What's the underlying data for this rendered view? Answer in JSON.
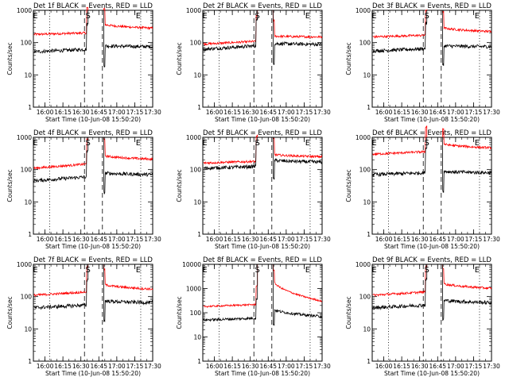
{
  "chart_data": [
    {
      "type": "line",
      "title": "Det 1f BLACK = Events, RED = LLD",
      "xlabel": "Start Time (10-Jun-08 15:50:20)",
      "ylabel": "Counts/sec",
      "yscale": "log",
      "ylim": [
        1,
        1000
      ],
      "x_ticks": [
        "16:00",
        "16:15",
        "16:30",
        "16:45",
        "17:00",
        "17:15",
        "17:30"
      ],
      "y_ticks": [
        "1",
        "10",
        "100",
        "1000"
      ],
      "markers": [
        {
          "label": "E",
          "time": "15:52"
        },
        {
          "label": "S",
          "time": "16:36"
        },
        {
          "label": "E",
          "time": "17:18"
        }
      ],
      "dashed_times": [
        "16:33",
        "16:48"
      ],
      "dotted_times": [
        "16:04",
        "17:20"
      ],
      "series": [
        {
          "name": "LLD",
          "color": "#ff0000",
          "base_before": 180,
          "end_before": 200,
          "base_after": 380,
          "end_after": 280
        },
        {
          "name": "Events",
          "color": "#000000",
          "base_before": 52,
          "end_before": 62,
          "base_after": 80,
          "end_after": 75
        }
      ]
    },
    {
      "type": "line",
      "title": "Det 2f BLACK = Events, RED = LLD",
      "xlabel": "Start Time (10-Jun-08 15:50:20)",
      "ylabel": "Counts/sec",
      "yscale": "log",
      "ylim": [
        1,
        1000
      ],
      "x_ticks": [
        "16:00",
        "16:15",
        "16:30",
        "16:45",
        "17:00",
        "17:15",
        "17:30"
      ],
      "y_ticks": [
        "1",
        "10",
        "100",
        "1000"
      ],
      "markers": [
        {
          "label": "E",
          "time": "15:52"
        },
        {
          "label": "S",
          "time": "16:36"
        },
        {
          "label": "E",
          "time": "17:18"
        }
      ],
      "dashed_times": [
        "16:33",
        "16:48"
      ],
      "dotted_times": [
        "16:04",
        "17:20"
      ],
      "series": [
        {
          "name": "LLD",
          "color": "#ff0000",
          "base_before": 90,
          "end_before": 110,
          "base_after": 160,
          "end_after": 150
        },
        {
          "name": "Events",
          "color": "#000000",
          "base_before": 62,
          "end_before": 80,
          "base_after": 95,
          "end_after": 88
        }
      ]
    },
    {
      "type": "line",
      "title": "Det 3f BLACK = Events, RED = LLD",
      "xlabel": "Start Time (10-Jun-08 15:50:20)",
      "ylabel": "Counts/sec",
      "yscale": "log",
      "ylim": [
        1,
        1000
      ],
      "x_ticks": [
        "16:00",
        "16:15",
        "16:30",
        "16:45",
        "17:00",
        "17:15",
        "17:30"
      ],
      "y_ticks": [
        "1",
        "10",
        "100",
        "1000"
      ],
      "markers": [
        {
          "label": "E",
          "time": "15:52"
        },
        {
          "label": "S",
          "time": "16:36"
        },
        {
          "label": "E",
          "time": "17:18"
        }
      ],
      "dashed_times": [
        "16:33",
        "16:48"
      ],
      "dotted_times": [
        "16:04",
        "17:20"
      ],
      "series": [
        {
          "name": "LLD",
          "color": "#ff0000",
          "base_before": 150,
          "end_before": 170,
          "base_after": 300,
          "end_after": 220
        },
        {
          "name": "Events",
          "color": "#000000",
          "base_before": 55,
          "end_before": 65,
          "base_after": 80,
          "end_after": 75
        }
      ]
    },
    {
      "type": "line",
      "title": "Det 4f BLACK = Events, RED = LLD",
      "xlabel": "Start Time (10-Jun-08 15:50:20)",
      "ylabel": "Counts/sec",
      "yscale": "log",
      "ylim": [
        1,
        1000
      ],
      "x_ticks": [
        "16:00",
        "16:15",
        "16:30",
        "16:45",
        "17:00",
        "17:15",
        "17:30"
      ],
      "y_ticks": [
        "1",
        "10",
        "100",
        "1000"
      ],
      "markers": [
        {
          "label": "E",
          "time": "15:52"
        },
        {
          "label": "S",
          "time": "16:36"
        },
        {
          "label": "E",
          "time": "17:18"
        }
      ],
      "dashed_times": [
        "16:33",
        "16:48"
      ],
      "dotted_times": [
        "16:04",
        "17:20"
      ],
      "series": [
        {
          "name": "LLD",
          "color": "#ff0000",
          "base_before": 110,
          "end_before": 150,
          "base_after": 280,
          "end_after": 210
        },
        {
          "name": "Events",
          "color": "#000000",
          "base_before": 45,
          "end_before": 60,
          "base_after": 80,
          "end_after": 70
        }
      ]
    },
    {
      "type": "line",
      "title": "Det 5f BLACK = Events, RED = LLD",
      "xlabel": "Start Time (10-Jun-08 15:50:20)",
      "ylabel": "Counts/sec",
      "yscale": "log",
      "ylim": [
        1,
        1000
      ],
      "x_ticks": [
        "16:00",
        "16:15",
        "16:30",
        "16:45",
        "17:00",
        "17:15",
        "17:30"
      ],
      "y_ticks": [
        "1",
        "10",
        "100",
        "1000"
      ],
      "markers": [
        {
          "label": "E",
          "time": "15:52"
        },
        {
          "label": "S",
          "time": "16:36"
        },
        {
          "label": "E",
          "time": "17:18"
        }
      ],
      "dashed_times": [
        "16:33",
        "16:48"
      ],
      "dotted_times": [
        "16:04",
        "17:20"
      ],
      "series": [
        {
          "name": "LLD",
          "color": "#ff0000",
          "base_before": 160,
          "end_before": 180,
          "base_after": 300,
          "end_after": 250
        },
        {
          "name": "Events",
          "color": "#000000",
          "base_before": 110,
          "end_before": 125,
          "base_after": 200,
          "end_after": 170
        }
      ]
    },
    {
      "type": "line",
      "title": "Det 6f BLACK = Events, RED = LLD",
      "xlabel": "Start Time (10-Jun-08 15:50:20)",
      "ylabel": "Counts/sec",
      "yscale": "log",
      "ylim": [
        1,
        1000
      ],
      "x_ticks": [
        "16:00",
        "16:15",
        "16:30",
        "16:45",
        "17:00",
        "17:15",
        "17:30"
      ],
      "y_ticks": [
        "1",
        "10",
        "100",
        "1000"
      ],
      "markers": [
        {
          "label": "E",
          "time": "15:52"
        },
        {
          "label": "S",
          "time": "16:36"
        },
        {
          "label": "E",
          "time": "17:18"
        }
      ],
      "dashed_times": [
        "16:33",
        "16:48"
      ],
      "dotted_times": [
        "16:04",
        "17:20"
      ],
      "series": [
        {
          "name": "LLD",
          "color": "#ff0000",
          "base_before": 300,
          "end_before": 360,
          "base_after": 650,
          "end_after": 470
        },
        {
          "name": "Events",
          "color": "#000000",
          "base_before": 70,
          "end_before": 80,
          "base_after": 90,
          "end_after": 80
        }
      ]
    },
    {
      "type": "line",
      "title": "Det 7f BLACK = Events, RED = LLD",
      "xlabel": "Start Time (10-Jun-08 15:50:20)",
      "ylabel": "Counts/sec",
      "yscale": "log",
      "ylim": [
        1,
        1000
      ],
      "x_ticks": [
        "16:00",
        "16:15",
        "16:30",
        "16:45",
        "17:00",
        "17:15",
        "17:30"
      ],
      "y_ticks": [
        "1",
        "10",
        "100",
        "1000"
      ],
      "markers": [
        {
          "label": "E",
          "time": "15:52"
        },
        {
          "label": "S",
          "time": "16:36"
        },
        {
          "label": "E",
          "time": "17:18"
        }
      ],
      "dashed_times": [
        "16:33",
        "16:48"
      ],
      "dotted_times": [
        "16:04",
        "17:20"
      ],
      "series": [
        {
          "name": "LLD",
          "color": "#ff0000",
          "base_before": 110,
          "end_before": 140,
          "base_after": 250,
          "end_after": 170
        },
        {
          "name": "Events",
          "color": "#000000",
          "base_before": 45,
          "end_before": 55,
          "base_after": 75,
          "end_after": 65
        }
      ]
    },
    {
      "type": "line",
      "title": "Det 8f BLACK = Events, RED = LLD",
      "xlabel": "Start Time (10-Jun-08 15:50:20)",
      "ylabel": "Counts/sec",
      "yscale": "log",
      "ylim": [
        1,
        10000
      ],
      "x_ticks": [
        "16:00",
        "16:15",
        "16:30",
        "16:45",
        "17:00",
        "17:15",
        "17:30"
      ],
      "y_ticks": [
        "1",
        "10",
        "100",
        "1000",
        "10000"
      ],
      "markers": [
        {
          "label": "E",
          "time": "15:52"
        },
        {
          "label": "S",
          "time": "16:36"
        },
        {
          "label": "E",
          "time": "17:18"
        }
      ],
      "dashed_times": [
        "16:33",
        "16:48"
      ],
      "dotted_times": [
        "16:04",
        "17:20"
      ],
      "series": [
        {
          "name": "LLD",
          "color": "#ff0000",
          "base_before": 180,
          "end_before": 220,
          "base_after": 2500,
          "end_after": 300
        },
        {
          "name": "Events",
          "color": "#000000",
          "base_before": 50,
          "end_before": 60,
          "base_after": 150,
          "end_after": 70
        }
      ]
    },
    {
      "type": "line",
      "title": "Det 9f BLACK = Events, RED = LLD",
      "xlabel": "Start Time (10-Jun-08 15:50:20)",
      "ylabel": "Counts/sec",
      "yscale": "log",
      "ylim": [
        1,
        1000
      ],
      "x_ticks": [
        "16:00",
        "16:15",
        "16:30",
        "16:45",
        "17:00",
        "17:15",
        "17:30"
      ],
      "y_ticks": [
        "1",
        "10",
        "100",
        "1000"
      ],
      "markers": [
        {
          "label": "E",
          "time": "15:52"
        },
        {
          "label": "S",
          "time": "16:36"
        },
        {
          "label": "E",
          "time": "17:18"
        }
      ],
      "dashed_times": [
        "16:33",
        "16:48"
      ],
      "dotted_times": [
        "16:04",
        "17:20"
      ],
      "series": [
        {
          "name": "LLD",
          "color": "#ff0000",
          "base_before": 110,
          "end_before": 140,
          "base_after": 270,
          "end_after": 180
        },
        {
          "name": "Events",
          "color": "#000000",
          "base_before": 45,
          "end_before": 55,
          "base_after": 80,
          "end_after": 65
        }
      ]
    }
  ]
}
